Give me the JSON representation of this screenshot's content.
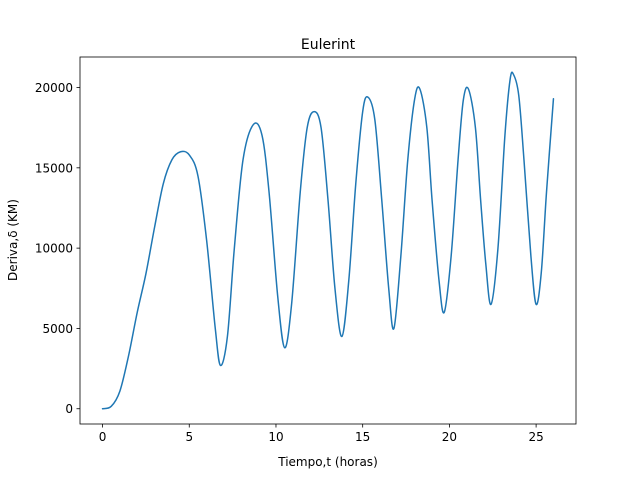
{
  "chart_data": {
    "type": "line",
    "title": "Eulerint",
    "xlabel": "Tiempo,t (horas)",
    "ylabel": "Deriva,δ (KM)",
    "xlim": [
      -1.3,
      27.3
    ],
    "ylim": [
      -950,
      21900
    ],
    "x_ticks": [
      0,
      5,
      10,
      15,
      20,
      25
    ],
    "y_ticks": [
      0,
      5000,
      10000,
      15000,
      20000
    ],
    "grid": false,
    "series": [
      {
        "color": "#1f77b4",
        "points": [
          [
            0,
            0
          ],
          [
            0.5,
            150
          ],
          [
            1.0,
            1100
          ],
          [
            1.5,
            3300
          ],
          [
            2.0,
            6000
          ],
          [
            2.5,
            8400
          ],
          [
            3.0,
            11300
          ],
          [
            3.5,
            14000
          ],
          [
            4.0,
            15500
          ],
          [
            4.5,
            16000
          ],
          [
            5.0,
            15800
          ],
          [
            5.5,
            14500
          ],
          [
            6.0,
            10500
          ],
          [
            6.5,
            5000
          ],
          [
            6.8,
            2700
          ],
          [
            7.2,
            4500
          ],
          [
            7.6,
            10000
          ],
          [
            8.1,
            15500
          ],
          [
            8.7,
            17700
          ],
          [
            9.2,
            17000
          ],
          [
            9.6,
            13500
          ],
          [
            10.1,
            7000
          ],
          [
            10.5,
            3800
          ],
          [
            10.9,
            6500
          ],
          [
            11.4,
            13500
          ],
          [
            11.8,
            17500
          ],
          [
            12.2,
            18500
          ],
          [
            12.6,
            17500
          ],
          [
            13.0,
            13000
          ],
          [
            13.4,
            7500
          ],
          [
            13.8,
            4500
          ],
          [
            14.2,
            8000
          ],
          [
            14.6,
            14000
          ],
          [
            15.0,
            18500
          ],
          [
            15.3,
            19400
          ],
          [
            15.7,
            18000
          ],
          [
            16.1,
            13000
          ],
          [
            16.5,
            7500
          ],
          [
            16.8,
            5000
          ],
          [
            17.2,
            9500
          ],
          [
            17.6,
            15500
          ],
          [
            18.0,
            19300
          ],
          [
            18.3,
            19900
          ],
          [
            18.7,
            17500
          ],
          [
            19.0,
            13000
          ],
          [
            19.4,
            8000
          ],
          [
            19.7,
            6000
          ],
          [
            20.1,
            9500
          ],
          [
            20.5,
            15500
          ],
          [
            20.8,
            19200
          ],
          [
            21.1,
            19900
          ],
          [
            21.5,
            17500
          ],
          [
            21.8,
            13000
          ],
          [
            22.1,
            9000
          ],
          [
            22.4,
            6500
          ],
          [
            22.8,
            10000
          ],
          [
            23.2,
            17000
          ],
          [
            23.5,
            20500
          ],
          [
            23.7,
            20800
          ],
          [
            24.0,
            19500
          ],
          [
            24.3,
            15500
          ],
          [
            24.7,
            9500
          ],
          [
            25.0,
            6500
          ],
          [
            25.3,
            8500
          ],
          [
            25.6,
            13500
          ],
          [
            26.0,
            19300
          ]
        ]
      }
    ]
  }
}
